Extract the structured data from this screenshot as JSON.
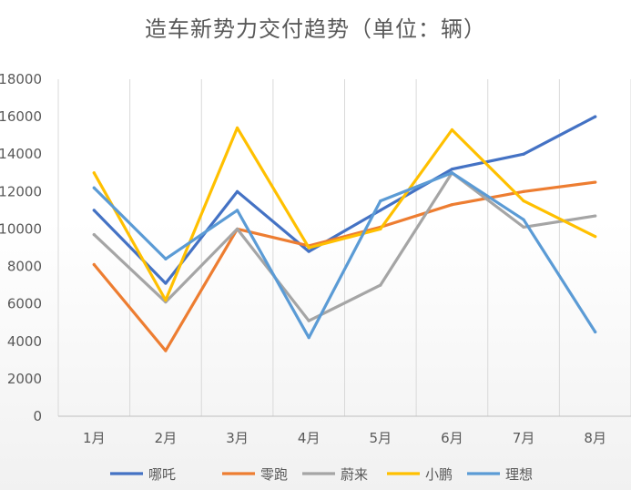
{
  "chart_data": {
    "type": "line",
    "title": "造车新势力交付趋势（单位：辆）",
    "xlabel": "",
    "ylabel": "",
    "categories": [
      "1月",
      "2月",
      "3月",
      "4月",
      "5月",
      "6月",
      "7月",
      "8月"
    ],
    "ylim": [
      0,
      18000
    ],
    "yticks": [
      0,
      2000,
      4000,
      6000,
      8000,
      10000,
      12000,
      14000,
      16000,
      18000
    ],
    "grid": "vertical",
    "legend": "bottom",
    "series": [
      {
        "name": "哪吒",
        "color": "#4472c4",
        "values": [
          11000,
          7100,
          12000,
          8800,
          11000,
          13200,
          14000,
          16000
        ]
      },
      {
        "name": "零跑",
        "color": "#ed7d31",
        "values": [
          8100,
          3500,
          10000,
          9100,
          10100,
          11300,
          12000,
          12500
        ]
      },
      {
        "name": "蔚来",
        "color": "#a5a5a5",
        "values": [
          9700,
          6100,
          10000,
          5100,
          7000,
          13000,
          10100,
          10700
        ]
      },
      {
        "name": "小鹏",
        "color": "#ffc000",
        "values": [
          13000,
          6200,
          15400,
          9000,
          10000,
          15300,
          11500,
          9600
        ]
      },
      {
        "name": "理想",
        "color": "#5b9bd5",
        "values": [
          12200,
          8400,
          11000,
          4200,
          11500,
          13000,
          10500,
          4500
        ]
      }
    ]
  }
}
